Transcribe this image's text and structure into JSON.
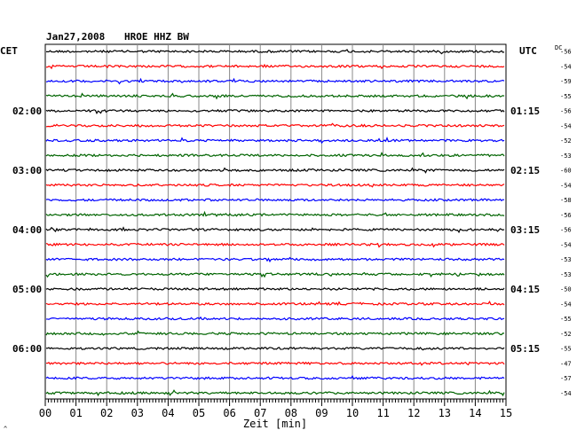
{
  "header": {
    "date": "Jan27,2008",
    "station": "HROE HHZ BW",
    "left_zone": "CET",
    "right_zone": "UTC",
    "dc_label": "DC",
    "corner_mark": "^"
  },
  "colors": {
    "trace_cycle": [
      "#000000",
      "#ff0000",
      "#0000ff",
      "#006400"
    ],
    "grid": "#888888"
  },
  "chart_data": {
    "type": "line",
    "title": "Jan27,2008 HROE HHZ BW",
    "xlabel": "Zeit [min]",
    "xlim": [
      0,
      15
    ],
    "x_ticks": [
      "00",
      "01",
      "02",
      "03",
      "04",
      "05",
      "06",
      "07",
      "08",
      "09",
      "10",
      "11",
      "12",
      "13",
      "14",
      "15"
    ],
    "grid": true,
    "trace_count": 24,
    "traces_per_hour": 4,
    "left_hour_labels": [
      {
        "trace": 4,
        "text": "02:00"
      },
      {
        "trace": 8,
        "text": "03:00"
      },
      {
        "trace": 12,
        "text": "04:00"
      },
      {
        "trace": 16,
        "text": "05:00"
      },
      {
        "trace": 20,
        "text": "06:00"
      }
    ],
    "right_hour_labels": [
      {
        "trace": 4,
        "text": "01:15"
      },
      {
        "trace": 8,
        "text": "02:15"
      },
      {
        "trace": 12,
        "text": "03:15"
      },
      {
        "trace": 16,
        "text": "04:15"
      },
      {
        "trace": 20,
        "text": "05:15"
      }
    ],
    "dc_offsets": [
      -56,
      -54,
      -59,
      -55,
      -56,
      -54,
      -52,
      -53,
      -60,
      -54,
      -58,
      -56,
      -56,
      -54,
      -53,
      -53,
      -50,
      -54,
      -55,
      -52,
      -55,
      -47,
      -57,
      -54
    ]
  }
}
